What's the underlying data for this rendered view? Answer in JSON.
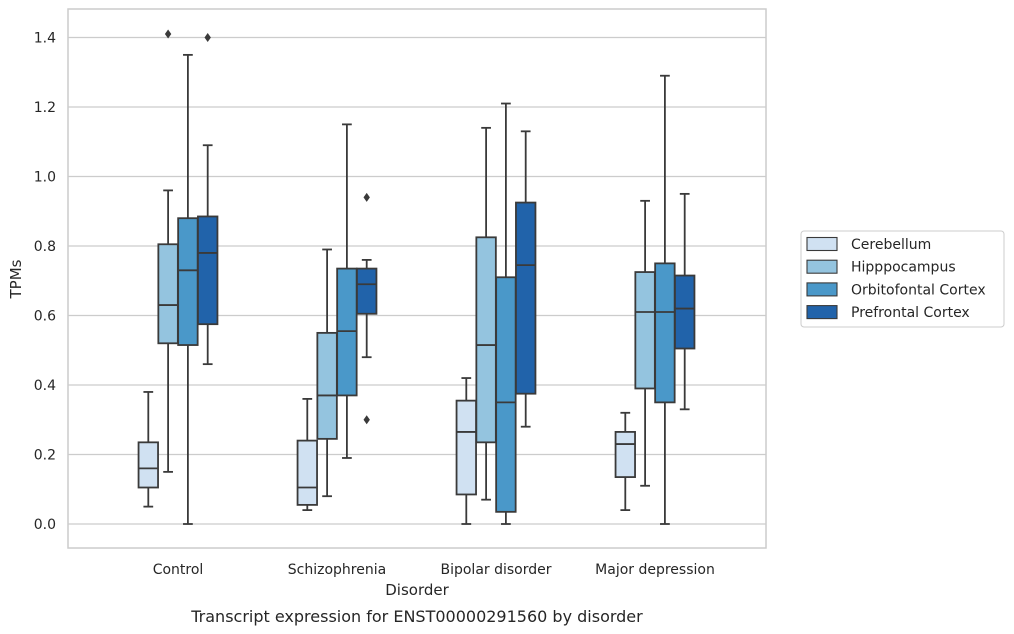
{
  "chart_data": {
    "type": "box",
    "caption": "Transcript expression for ENST00000291560 by disorder",
    "xlabel": "Disorder",
    "ylabel": "TPMs",
    "ylim": [
      -0.07,
      1.48
    ],
    "yticks": [
      0.0,
      0.2,
      0.4,
      0.6,
      0.8,
      1.0,
      1.2,
      1.4
    ],
    "ytick_labels": [
      "0.0",
      "0.2",
      "0.4",
      "0.6",
      "0.8",
      "1.0",
      "1.2",
      "1.4"
    ],
    "grid": "horizontal",
    "legend_position": "right",
    "categories": [
      "Control",
      "Schizophrenia",
      "Bipolar disorder",
      "Major depression"
    ],
    "series": [
      {
        "name": "Cerebellum",
        "color": "#d0e1f2",
        "boxes": [
          {
            "whislo": 0.05,
            "q1": 0.105,
            "med": 0.16,
            "q3": 0.235,
            "whishi": 0.38,
            "fliers": []
          },
          {
            "whislo": 0.04,
            "q1": 0.055,
            "med": 0.105,
            "q3": 0.24,
            "whishi": 0.36,
            "fliers": []
          },
          {
            "whislo": 0.0,
            "q1": 0.085,
            "med": 0.265,
            "q3": 0.355,
            "whishi": 0.42,
            "fliers": []
          },
          {
            "whislo": 0.04,
            "q1": 0.135,
            "med": 0.23,
            "q3": 0.265,
            "whishi": 0.32,
            "fliers": []
          }
        ]
      },
      {
        "name": "Hipppocampus",
        "color": "#94c4df",
        "boxes": [
          {
            "whislo": 0.15,
            "q1": 0.52,
            "med": 0.63,
            "q3": 0.805,
            "whishi": 0.96,
            "fliers": [
              1.41
            ]
          },
          {
            "whislo": 0.08,
            "q1": 0.245,
            "med": 0.37,
            "q3": 0.55,
            "whishi": 0.79,
            "fliers": []
          },
          {
            "whislo": 0.07,
            "q1": 0.235,
            "med": 0.515,
            "q3": 0.825,
            "whishi": 1.14,
            "fliers": []
          },
          {
            "whislo": 0.11,
            "q1": 0.39,
            "med": 0.61,
            "q3": 0.725,
            "whishi": 0.93,
            "fliers": []
          }
        ]
      },
      {
        "name": "Orbitofontal Cortex",
        "color": "#4a98c9",
        "boxes": [
          {
            "whislo": 0.0,
            "q1": 0.515,
            "med": 0.73,
            "q3": 0.88,
            "whishi": 1.35,
            "fliers": []
          },
          {
            "whislo": 0.19,
            "q1": 0.37,
            "med": 0.555,
            "q3": 0.735,
            "whishi": 1.15,
            "fliers": []
          },
          {
            "whislo": 0.0,
            "q1": 0.035,
            "med": 0.35,
            "q3": 0.71,
            "whishi": 1.21,
            "fliers": []
          },
          {
            "whislo": 0.0,
            "q1": 0.35,
            "med": 0.61,
            "q3": 0.75,
            "whishi": 1.29,
            "fliers": []
          }
        ]
      },
      {
        "name": "Prefrontal Cortex",
        "color": "#2163aa",
        "boxes": [
          {
            "whislo": 0.46,
            "q1": 0.575,
            "med": 0.78,
            "q3": 0.885,
            "whishi": 1.09,
            "fliers": [
              1.4
            ]
          },
          {
            "whislo": 0.48,
            "q1": 0.605,
            "med": 0.69,
            "q3": 0.735,
            "whishi": 0.76,
            "fliers": [
              0.94,
              0.3
            ]
          },
          {
            "whislo": 0.28,
            "q1": 0.375,
            "med": 0.745,
            "q3": 0.925,
            "whishi": 1.13,
            "fliers": []
          },
          {
            "whislo": 0.33,
            "q1": 0.505,
            "med": 0.62,
            "q3": 0.715,
            "whishi": 0.95,
            "fliers": []
          }
        ]
      }
    ]
  }
}
